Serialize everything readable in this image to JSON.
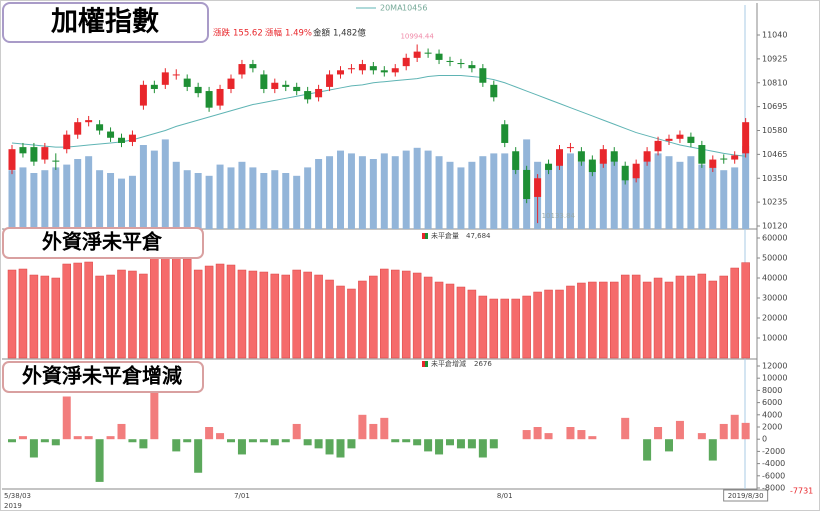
{
  "chart_data": [
    {
      "type": "candlestick",
      "title": "加權指數",
      "categories": [
        "5/38/03",
        null,
        null,
        null,
        null,
        null,
        null,
        null,
        null,
        null,
        null,
        null,
        null,
        null,
        null,
        null,
        null,
        null,
        null,
        null,
        null,
        "7/01",
        null,
        null,
        null,
        null,
        null,
        null,
        null,
        null,
        null,
        null,
        null,
        null,
        null,
        null,
        null,
        null,
        null,
        null,
        null,
        null,
        null,
        null,
        null,
        "8/01",
        null,
        null,
        null,
        null,
        null,
        null,
        null,
        null,
        null,
        null,
        null,
        null,
        null,
        null,
        null,
        null,
        null,
        null,
        null,
        null,
        null,
        "2019/8/30"
      ],
      "x_year": "2019",
      "open": [
        10390,
        10500,
        10500,
        10440,
        10435,
        10490,
        10560,
        10620,
        10610,
        10575,
        10545,
        10525,
        10700,
        10800,
        10800,
        10850,
        10830,
        10790,
        10770,
        10700,
        10780,
        10850,
        10900,
        10850,
        10780,
        10800,
        10790,
        10770,
        10740,
        10790,
        10850,
        10875,
        10870,
        10890,
        10870,
        10860,
        10890,
        10930,
        10955,
        10950,
        10915,
        10905,
        10895,
        10880,
        10800,
        10610,
        10480,
        10390,
        10260,
        10420,
        10410,
        10495,
        10480,
        10440,
        10420,
        10480,
        10410,
        10350,
        10430,
        10480,
        10530,
        10540,
        10550,
        10510,
        10400,
        10445,
        10440,
        10470
      ],
      "close": [
        10490,
        10470,
        10430,
        10500,
        10430,
        10560,
        10620,
        10630,
        10580,
        10545,
        10520,
        10560,
        10800,
        10780,
        10860,
        10850,
        10790,
        10760,
        10690,
        10780,
        10830,
        10900,
        10880,
        10780,
        10810,
        10790,
        10770,
        10730,
        10780,
        10850,
        10870,
        10880,
        10900,
        10870,
        10860,
        10880,
        10930,
        10960,
        10950,
        10920,
        10910,
        10900,
        10880,
        10810,
        10740,
        10520,
        10390,
        10250,
        10350,
        10390,
        10490,
        10500,
        10430,
        10380,
        10490,
        10430,
        10340,
        10420,
        10480,
        10530,
        10540,
        10560,
        10520,
        10420,
        10440,
        10440,
        10460,
        10620
      ],
      "high": [
        10510,
        10520,
        10520,
        10520,
        10470,
        10580,
        10640,
        10650,
        10630,
        10595,
        10565,
        10580,
        10820,
        10820,
        10880,
        10875,
        10850,
        10810,
        10790,
        10800,
        10850,
        10920,
        10920,
        10870,
        10830,
        10820,
        10810,
        10790,
        10800,
        10870,
        10890,
        10900,
        10920,
        10910,
        10890,
        10900,
        10950,
        10994.44,
        10975,
        10970,
        10935,
        10925,
        10915,
        10900,
        10820,
        10630,
        10500,
        10410,
        10370,
        10440,
        10510,
        10520,
        10500,
        10460,
        10510,
        10500,
        10430,
        10440,
        10500,
        10550,
        10560,
        10580,
        10570,
        10530,
        10460,
        10465,
        10480,
        10640
      ],
      "low": [
        10370,
        10450,
        10410,
        10420,
        10390,
        10470,
        10540,
        10600,
        10560,
        10525,
        10500,
        10505,
        10680,
        10760,
        10780,
        10825,
        10770,
        10740,
        10670,
        10680,
        10760,
        10830,
        10860,
        10760,
        10760,
        10770,
        10750,
        10710,
        10720,
        10770,
        10830,
        10855,
        10850,
        10850,
        10840,
        10840,
        10870,
        10910,
        10930,
        10900,
        10890,
        10880,
        10860,
        10790,
        10720,
        10500,
        10370,
        10230,
        10133.84,
        10370,
        10390,
        10475,
        10410,
        10360,
        10400,
        10410,
        10320,
        10330,
        10410,
        10460,
        10510,
        10520,
        10500,
        10400,
        10380,
        10420,
        10420,
        10450
      ],
      "up_color": "#e8262b",
      "down_color": "#1e8f34",
      "ma": {
        "name": "20MA",
        "color": "#5fb4b4",
        "values": [
          10520,
          10515,
          10510,
          10505,
          10500,
          10500,
          10505,
          10510,
          10515,
          10520,
          10525,
          10535,
          10550,
          10565,
          10580,
          10600,
          10615,
          10630,
          10645,
          10660,
          10675,
          10690,
          10705,
          10715,
          10725,
          10735,
          10745,
          10755,
          10765,
          10775,
          10785,
          10795,
          10800,
          10810,
          10815,
          10820,
          10825,
          10830,
          10840,
          10845,
          10845,
          10845,
          10840,
          10835,
          10825,
          10810,
          10790,
          10770,
          10750,
          10730,
          10710,
          10690,
          10670,
          10650,
          10630,
          10610,
          10590,
          10570,
          10555,
          10540,
          10525,
          10510,
          10500,
          10490,
          10480,
          10470,
          10462,
          10456
        ]
      },
      "volume": [
        1050,
        1100,
        1000,
        1050,
        1100,
        1150,
        1250,
        1300,
        1050,
        1000,
        900,
        950,
        1500,
        1400,
        1600,
        1200,
        1050,
        1000,
        950,
        1150,
        1100,
        1200,
        1100,
        1000,
        1050,
        1000,
        950,
        1100,
        1250,
        1300,
        1400,
        1350,
        1300,
        1250,
        1350,
        1300,
        1400,
        1450,
        1400,
        1300,
        1200,
        1100,
        1200,
        1300,
        1350,
        1350,
        1300,
        1600,
        1200,
        1100,
        1300,
        1350,
        1200,
        1150,
        1250,
        1300,
        1050,
        1100,
        1300,
        1350,
        1300,
        1200,
        1300,
        1150,
        1100,
        1050,
        1100,
        1482
      ],
      "volume_color": "#93b5d9",
      "volume_lim": [
        0,
        4000
      ],
      "stats": [
        {
          "label": "漲跌",
          "value": "155.62"
        },
        {
          "label": "漲幅",
          "value": "1.49%"
        },
        {
          "label": "金額",
          "value": "1,482億"
        }
      ],
      "ylim": [
        10120,
        11040
      ],
      "yticks": [
        10120,
        10235,
        10350,
        10465,
        10580,
        10695,
        10810,
        10925,
        11040
      ]
    },
    {
      "type": "bar",
      "title": "外資淨未平倉",
      "values": [
        44000,
        44500,
        41500,
        41000,
        40000,
        47000,
        47500,
        48000,
        41000,
        41500,
        44000,
        43500,
        42000,
        52000,
        52000,
        50000,
        49500,
        44000,
        46000,
        47000,
        46500,
        44000,
        43500,
        43000,
        42000,
        41500,
        44000,
        43000,
        41500,
        39000,
        36000,
        34500,
        38500,
        41000,
        44500,
        44000,
        43500,
        42500,
        40500,
        38000,
        37000,
        35500,
        34000,
        31000,
        29500,
        29500,
        29500,
        31000,
        33000,
        34000,
        34000,
        36000,
        37500,
        38000,
        38000,
        38000,
        41500,
        41500,
        38000,
        40000,
        38000,
        41000,
        41000,
        42000,
        38500,
        41000,
        45000,
        47684
      ],
      "color": "#f56b6b",
      "legend": {
        "name": "未平倉量",
        "value": "47,684"
      },
      "ylim": [
        0,
        60000
      ],
      "yticks": [
        10000,
        20000,
        30000,
        40000,
        50000,
        60000
      ]
    },
    {
      "type": "bar",
      "title": "外資淨未平倉增減",
      "values": [
        -500,
        500,
        -3000,
        -500,
        -1000,
        7000,
        500,
        500,
        -7000,
        500,
        2500,
        -500,
        -1500,
        10000,
        0,
        -2000,
        -500,
        -5500,
        2000,
        1000,
        -500,
        -2500,
        -500,
        -500,
        -1000,
        -500,
        2500,
        -1000,
        -1500,
        -2500,
        -3000,
        -1500,
        4000,
        2500,
        3500,
        -500,
        -500,
        -1000,
        -2000,
        -2500,
        -1000,
        -1500,
        -1500,
        -3000,
        -1500,
        0,
        0,
        1500,
        2000,
        1000,
        0,
        2000,
        1500,
        500,
        0,
        0,
        3500,
        0,
        -3500,
        2000,
        -2000,
        3000,
        0,
        1000,
        -3500,
        2500,
        4000,
        2676
      ],
      "pos_color": "#f27d7d",
      "neg_color": "#5ba85b",
      "legend": {
        "name": "未平倉增減",
        "value": "2676"
      },
      "annotation": "-7731",
      "ylim": [
        -8000,
        12000
      ],
      "yticks": [
        -8000,
        -6000,
        -4000,
        -2000,
        0,
        2000,
        4000,
        6000,
        8000,
        10000,
        12000
      ]
    }
  ]
}
